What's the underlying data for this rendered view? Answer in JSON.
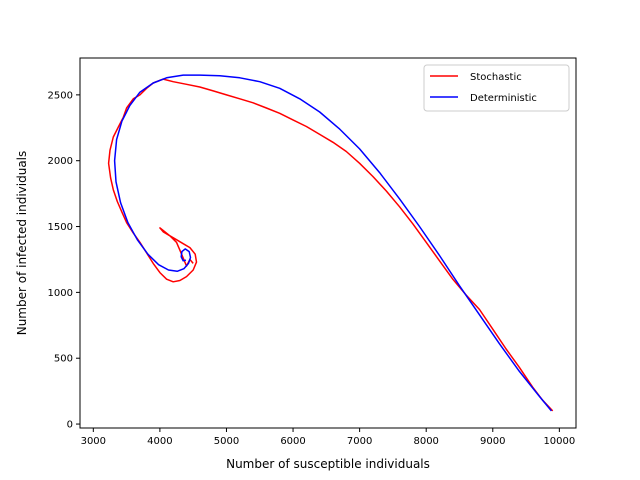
{
  "chart_data": {
    "type": "line",
    "title": "",
    "xlabel": "Number of susceptible individuals",
    "ylabel": "Number of infected individuals",
    "xlim": [
      2800,
      10250
    ],
    "ylim": [
      -30,
      2780
    ],
    "xticks": [
      3000,
      4000,
      5000,
      6000,
      7000,
      8000,
      9000,
      10000
    ],
    "yticks": [
      0,
      500,
      1000,
      1500,
      2000,
      2500
    ],
    "grid": false,
    "legend_position": "top-right",
    "series": [
      {
        "name": "Stochastic",
        "color": "#ff0000",
        "points": [
          [
            9900,
            100
          ],
          [
            9750,
            180
          ],
          [
            9600,
            280
          ],
          [
            9400,
            430
          ],
          [
            9200,
            570
          ],
          [
            9000,
            720
          ],
          [
            8800,
            870
          ],
          [
            8600,
            980
          ],
          [
            8400,
            1100
          ],
          [
            8200,
            1240
          ],
          [
            8000,
            1380
          ],
          [
            7800,
            1520
          ],
          [
            7600,
            1650
          ],
          [
            7400,
            1770
          ],
          [
            7200,
            1880
          ],
          [
            7000,
            1980
          ],
          [
            6800,
            2070
          ],
          [
            6600,
            2140
          ],
          [
            6400,
            2200
          ],
          [
            6200,
            2260
          ],
          [
            6000,
            2310
          ],
          [
            5800,
            2360
          ],
          [
            5600,
            2400
          ],
          [
            5400,
            2440
          ],
          [
            5200,
            2470
          ],
          [
            5000,
            2500
          ],
          [
            4800,
            2530
          ],
          [
            4600,
            2560
          ],
          [
            4400,
            2580
          ],
          [
            4200,
            2600
          ],
          [
            4050,
            2620
          ],
          [
            3900,
            2590
          ],
          [
            3800,
            2550
          ],
          [
            3700,
            2500
          ],
          [
            3600,
            2470
          ],
          [
            3500,
            2400
          ],
          [
            3450,
            2330
          ],
          [
            3380,
            2260
          ],
          [
            3300,
            2180
          ],
          [
            3250,
            2080
          ],
          [
            3230,
            1980
          ],
          [
            3260,
            1870
          ],
          [
            3300,
            1780
          ],
          [
            3360,
            1690
          ],
          [
            3430,
            1610
          ],
          [
            3500,
            1530
          ],
          [
            3600,
            1450
          ],
          [
            3700,
            1380
          ],
          [
            3800,
            1300
          ],
          [
            3900,
            1220
          ],
          [
            4000,
            1150
          ],
          [
            4100,
            1100
          ],
          [
            4200,
            1080
          ],
          [
            4300,
            1090
          ],
          [
            4400,
            1120
          ],
          [
            4500,
            1170
          ],
          [
            4550,
            1230
          ],
          [
            4530,
            1290
          ],
          [
            4450,
            1340
          ],
          [
            4350,
            1370
          ],
          [
            4250,
            1400
          ],
          [
            4150,
            1430
          ],
          [
            4050,
            1460
          ],
          [
            4000,
            1490
          ],
          [
            4050,
            1470
          ],
          [
            4150,
            1430
          ],
          [
            4250,
            1380
          ],
          [
            4300,
            1320
          ],
          [
            4350,
            1260
          ],
          [
            4400,
            1200
          ],
          [
            4450,
            1250
          ],
          [
            4500,
            1220
          ]
        ]
      },
      {
        "name": "Deterministic",
        "color": "#0000ff",
        "points": [
          [
            9880,
            100
          ],
          [
            9700,
            210
          ],
          [
            9400,
            400
          ],
          [
            9100,
            610
          ],
          [
            8800,
            830
          ],
          [
            8500,
            1050
          ],
          [
            8200,
            1280
          ],
          [
            7900,
            1500
          ],
          [
            7600,
            1710
          ],
          [
            7300,
            1910
          ],
          [
            7000,
            2090
          ],
          [
            6700,
            2240
          ],
          [
            6400,
            2370
          ],
          [
            6100,
            2470
          ],
          [
            5800,
            2550
          ],
          [
            5500,
            2600
          ],
          [
            5200,
            2630
          ],
          [
            4900,
            2645
          ],
          [
            4600,
            2650
          ],
          [
            4350,
            2650
          ],
          [
            4100,
            2630
          ],
          [
            3900,
            2590
          ],
          [
            3700,
            2520
          ],
          [
            3550,
            2420
          ],
          [
            3430,
            2300
          ],
          [
            3350,
            2160
          ],
          [
            3320,
            2000
          ],
          [
            3340,
            1840
          ],
          [
            3410,
            1680
          ],
          [
            3520,
            1530
          ],
          [
            3660,
            1400
          ],
          [
            3820,
            1290
          ],
          [
            3980,
            1210
          ],
          [
            4130,
            1170
          ],
          [
            4260,
            1160
          ],
          [
            4360,
            1180
          ],
          [
            4430,
            1220
          ],
          [
            4460,
            1265
          ],
          [
            4440,
            1310
          ],
          [
            4380,
            1330
          ],
          [
            4330,
            1310
          ],
          [
            4320,
            1270
          ],
          [
            4350,
            1240
          ],
          [
            4390,
            1245
          ]
        ]
      }
    ]
  }
}
